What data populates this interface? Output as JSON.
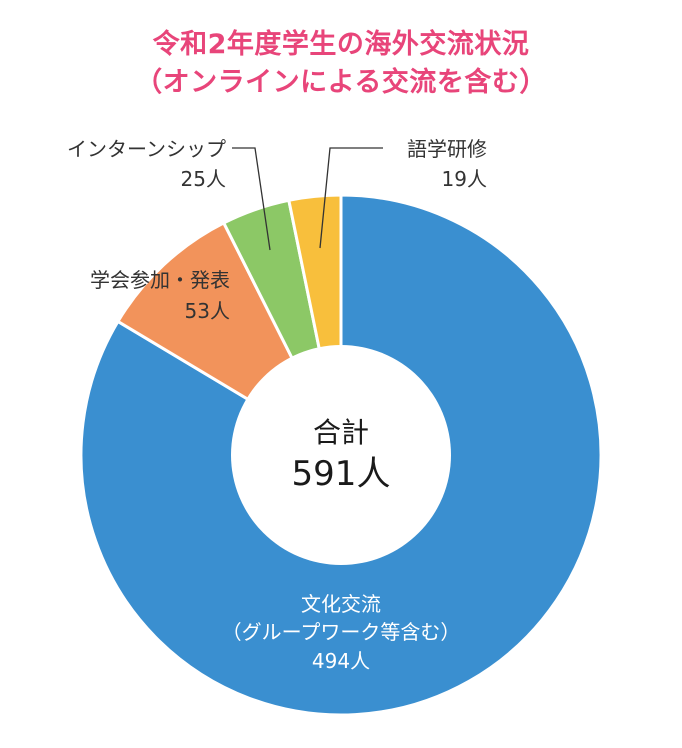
{
  "title": {
    "line1": "令和2年度学生の海外交流状況",
    "line2": "（オンラインによる交流を含む）"
  },
  "center": {
    "label": "合計",
    "total": "591人"
  },
  "chart_data": {
    "type": "pie",
    "variant": "donut",
    "title": "令和2年度学生の海外交流状況（オンラインによる交流を含む）",
    "unit": "人",
    "total": 591,
    "slices": [
      {
        "name": "文化交流（グループワーク等含む）",
        "name_lines": [
          "文化交流",
          "（グループワーク等含む）"
        ],
        "value": 494,
        "value_label": "494人",
        "color": "#3a8fd0"
      },
      {
        "name": "学会参加・発表",
        "name_lines": [
          "学会参加・発表"
        ],
        "value": 53,
        "value_label": "53人",
        "color": "#f2935b"
      },
      {
        "name": "インターンシップ",
        "name_lines": [
          "インターンシップ"
        ],
        "value": 25,
        "value_label": "25人",
        "color": "#8cc866"
      },
      {
        "name": "語学研修",
        "name_lines": [
          "語学研修"
        ],
        "value": 19,
        "value_label": "19人",
        "color": "#f8bf3c"
      }
    ]
  }
}
